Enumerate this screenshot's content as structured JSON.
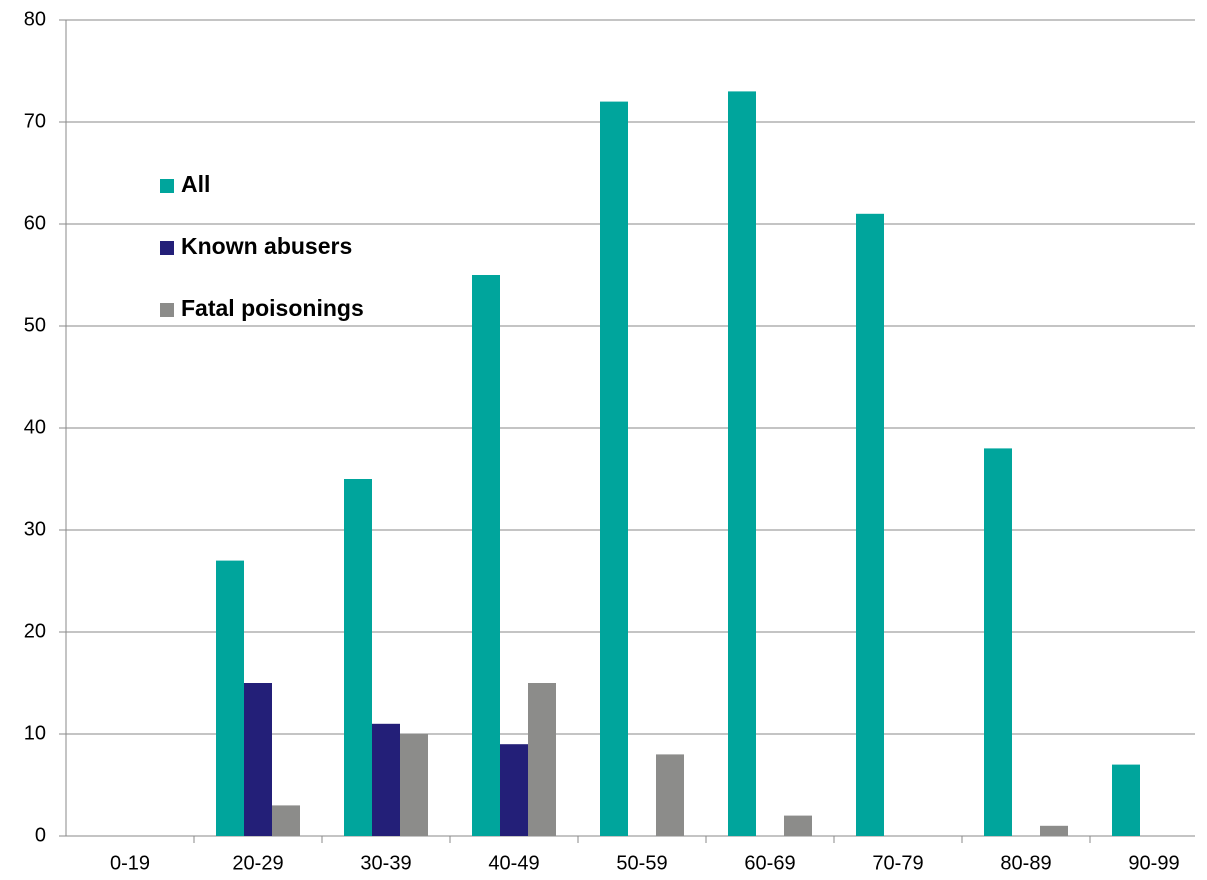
{
  "chart_data": {
    "type": "bar",
    "categories": [
      "0-19",
      "20-29",
      "30-39",
      "40-49",
      "50-59",
      "60-69",
      "70-79",
      "80-89",
      "90-99"
    ],
    "series": [
      {
        "name": "All",
        "color": "#00a59c",
        "values": [
          0,
          27,
          35,
          55,
          72,
          73,
          61,
          38,
          7
        ]
      },
      {
        "name": "Known abusers",
        "color": "#231f78",
        "values": [
          0,
          15,
          11,
          9,
          0,
          0,
          0,
          0,
          0
        ]
      },
      {
        "name": "Fatal poisonings",
        "color": "#8c8c8a",
        "values": [
          0,
          3,
          10,
          15,
          8,
          2,
          0,
          1,
          0
        ]
      }
    ],
    "ylim": [
      0,
      80
    ],
    "yticks": [
      0,
      10,
      20,
      30,
      40,
      50,
      60,
      70,
      80
    ],
    "grid": true,
    "legend": "upper left"
  }
}
